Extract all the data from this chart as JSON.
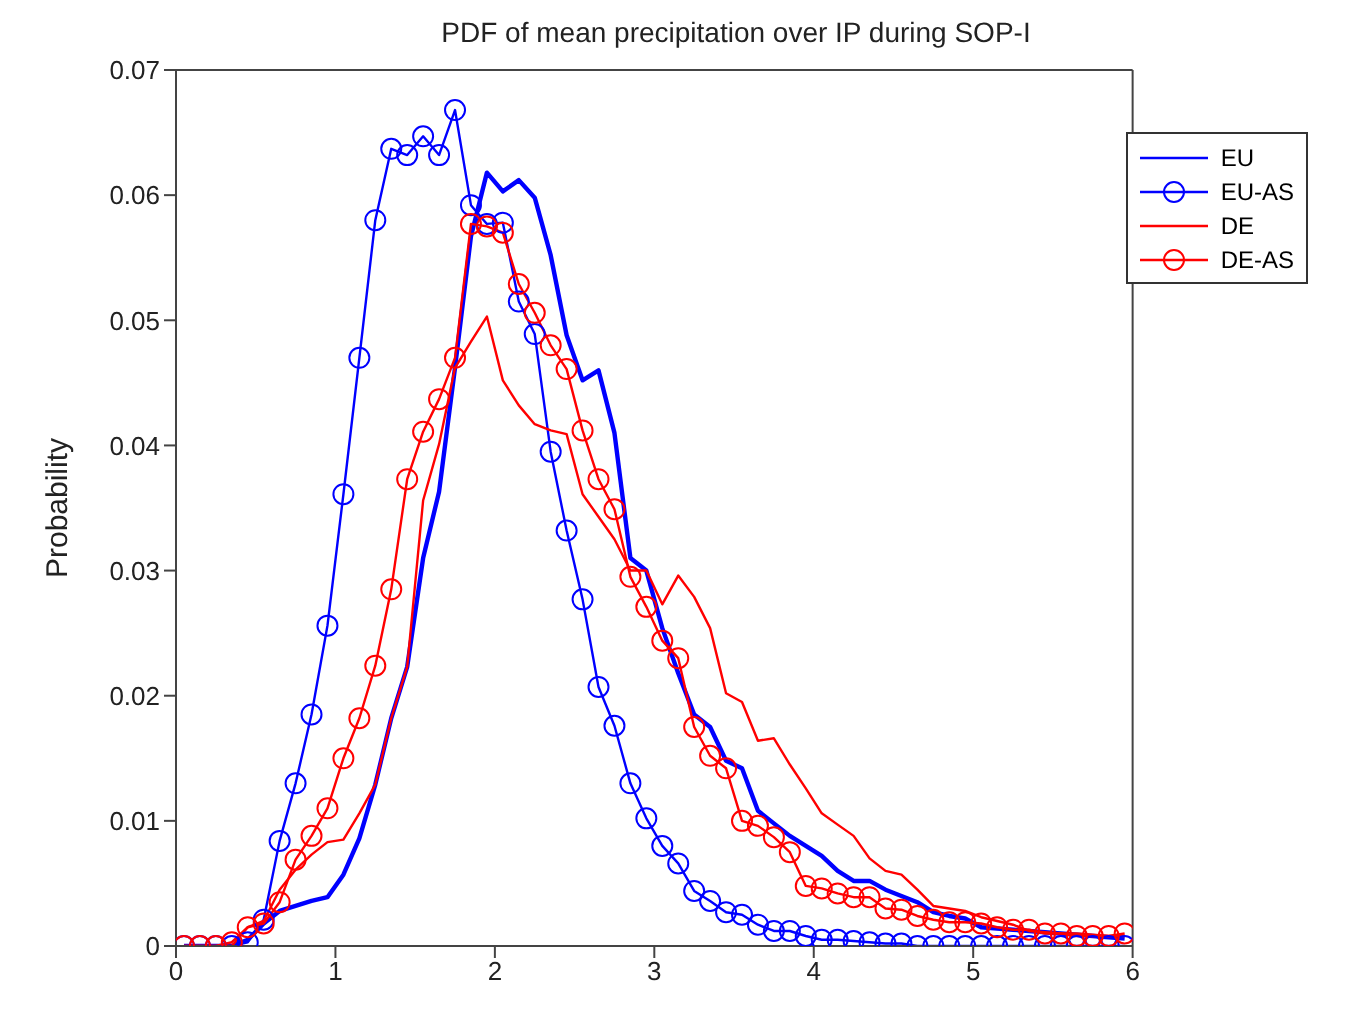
{
  "chart_data": {
    "type": "line",
    "title": "PDF of mean precipitation over IP during SOP-I",
    "ylabel": "Probability",
    "x": [
      0.05,
      0.15,
      0.25,
      0.35,
      0.45,
      0.55,
      0.65,
      0.75,
      0.85,
      0.95,
      1.05,
      1.15,
      1.25,
      1.35,
      1.45,
      1.55,
      1.65,
      1.75,
      1.85,
      1.95,
      2.05,
      2.15,
      2.25,
      2.35,
      2.45,
      2.55,
      2.65,
      2.75,
      2.85,
      2.95,
      3.05,
      3.15,
      3.25,
      3.35,
      3.45,
      3.55,
      3.65,
      3.75,
      3.85,
      3.95,
      4.05,
      4.15,
      4.25,
      4.35,
      4.45,
      4.55,
      4.65,
      4.75,
      4.85,
      4.95,
      5.05,
      5.15,
      5.25,
      5.35,
      5.45,
      5.55,
      5.65,
      5.75,
      5.85,
      5.95
    ],
    "series": [
      {
        "name": "EU",
        "color": "#0000ff",
        "marker": "none",
        "values": [
          0,
          0,
          0,
          0,
          0.0005,
          0.0018,
          0.0028,
          0.0032,
          0.0036,
          0.0039,
          0.0057,
          0.0086,
          0.0129,
          0.0182,
          0.0223,
          0.031,
          0.0363,
          0.0462,
          0.0567,
          0.0618,
          0.0603,
          0.0612,
          0.0598,
          0.0552,
          0.0488,
          0.0452,
          0.046,
          0.041,
          0.031,
          0.03,
          0.0254,
          0.0218,
          0.0185,
          0.0175,
          0.0148,
          0.0142,
          0.0108,
          0.0098,
          0.0088,
          0.008,
          0.0072,
          0.006,
          0.0052,
          0.0052,
          0.0045,
          0.004,
          0.0035,
          0.0027,
          0.0024,
          0.0022,
          0.0015,
          0.0014,
          0.0013,
          0.0012,
          0.0011,
          0.001,
          0.0009,
          0.0008,
          0.0007,
          0.0006
        ]
      },
      {
        "name": "EU-AS",
        "color": "#0000ff",
        "marker": "circle",
        "values": [
          0,
          0,
          0,
          0,
          0.0003,
          0.0021,
          0.0084,
          0.013,
          0.0185,
          0.0256,
          0.0361,
          0.047,
          0.058,
          0.0637,
          0.0632,
          0.0647,
          0.0632,
          0.0668,
          0.0592,
          0.0577,
          0.0578,
          0.0515,
          0.0489,
          0.0395,
          0.0332,
          0.0277,
          0.0207,
          0.0176,
          0.013,
          0.0102,
          0.008,
          0.0066,
          0.0044,
          0.0036,
          0.0027,
          0.0025,
          0.0017,
          0.0012,
          0.0012,
          0.0008,
          0.0005,
          0.0005,
          0.0004,
          0.0003,
          0.0002,
          0.0002,
          0,
          0,
          0,
          0,
          0,
          0,
          0,
          0,
          0,
          0,
          0,
          0,
          0,
          0
        ]
      },
      {
        "name": "DE",
        "color": "#ff0000",
        "marker": "none",
        "values": [
          0,
          0,
          0,
          0,
          0.0015,
          0.002,
          0.0045,
          0.0061,
          0.0073,
          0.0083,
          0.0085,
          0.0106,
          0.0129,
          0.0182,
          0.0223,
          0.0356,
          0.0401,
          0.0462,
          0.0483,
          0.0503,
          0.0452,
          0.0432,
          0.0417,
          0.0412,
          0.0409,
          0.0361,
          0.0343,
          0.0325,
          0.03,
          0.03,
          0.0273,
          0.0296,
          0.0279,
          0.0254,
          0.0202,
          0.0195,
          0.0164,
          0.0166,
          0.0145,
          0.0126,
          0.0106,
          0.0097,
          0.0088,
          0.007,
          0.006,
          0.0057,
          0.0045,
          0.0032,
          0.003,
          0.0028,
          0.0023,
          0.002,
          0.0017,
          0.0012,
          0.0011,
          0.001,
          0.001,
          0.0009,
          0.0008,
          0.0008
        ]
      },
      {
        "name": "DE-AS",
        "color": "#ff0000",
        "marker": "circle",
        "values": [
          0,
          0,
          0,
          0.0003,
          0.0015,
          0.0018,
          0.0035,
          0.0069,
          0.0088,
          0.011,
          0.015,
          0.0182,
          0.0224,
          0.0285,
          0.0373,
          0.0411,
          0.0437,
          0.047,
          0.0577,
          0.0575,
          0.057,
          0.0529,
          0.0506,
          0.048,
          0.0461,
          0.0412,
          0.0373,
          0.0349,
          0.0295,
          0.0271,
          0.0244,
          0.023,
          0.0175,
          0.0152,
          0.0142,
          0.01,
          0.0096,
          0.0087,
          0.0075,
          0.0048,
          0.0046,
          0.0042,
          0.0039,
          0.0039,
          0.003,
          0.0029,
          0.0024,
          0.0021,
          0.0019,
          0.0019,
          0.0018,
          0.0015,
          0.0013,
          0.0013,
          0.001,
          0.001,
          0.0008,
          0.0008,
          0.0008,
          0.001
        ]
      }
    ],
    "xlim": [
      0,
      6
    ],
    "xticks": [
      0,
      1,
      2,
      3,
      4,
      5,
      6
    ],
    "ylim": [
      0,
      0.07
    ],
    "yticks": [
      0,
      0.01,
      0.02,
      0.03,
      0.04,
      0.05,
      0.06,
      0.07
    ],
    "grid": false,
    "legend": "top right",
    "line_style": "solid"
  }
}
